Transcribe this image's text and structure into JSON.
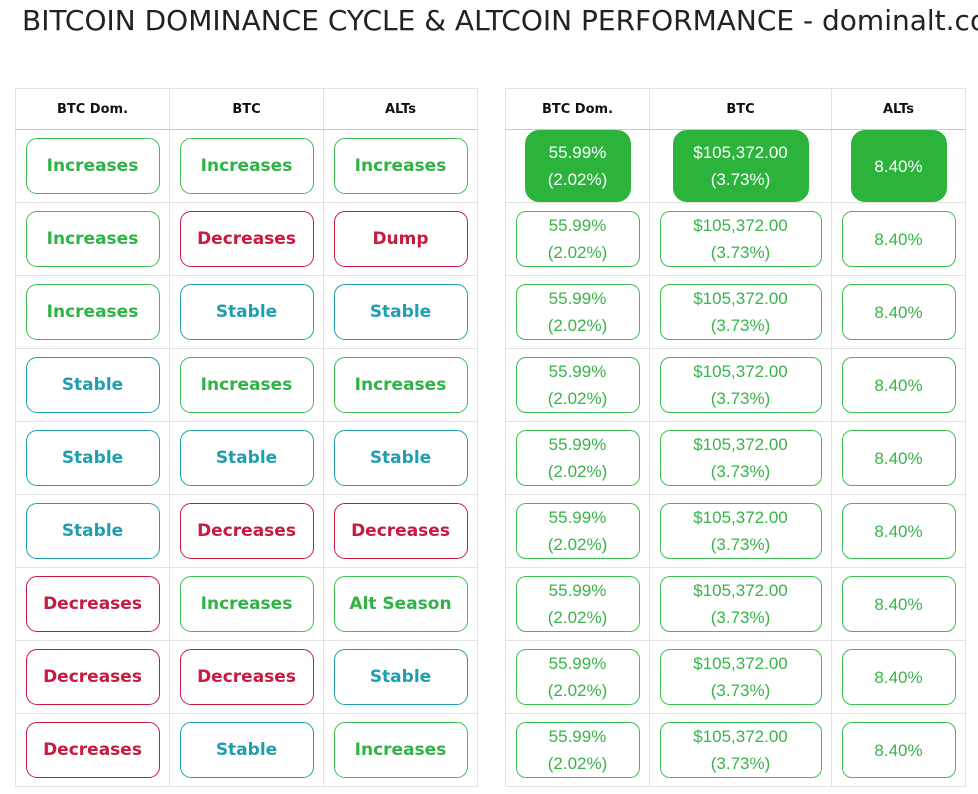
{
  "title": "BITCOIN DOMINANCE CYCLE & ALTCOIN PERFORMANCE - dominalt.com",
  "headers": [
    "BTC Dom.",
    "BTC",
    "ALTs"
  ],
  "rows": [
    {
      "btc_dom": "Increases",
      "btc": "Increases",
      "alts": "Increases"
    },
    {
      "btc_dom": "Increases",
      "btc": "Decreases",
      "alts": "Dump"
    },
    {
      "btc_dom": "Increases",
      "btc": "Stable",
      "alts": "Stable"
    },
    {
      "btc_dom": "Stable",
      "btc": "Increases",
      "alts": "Increases"
    },
    {
      "btc_dom": "Stable",
      "btc": "Stable",
      "alts": "Stable"
    },
    {
      "btc_dom": "Stable",
      "btc": "Decreases",
      "alts": "Decreases"
    },
    {
      "btc_dom": "Decreases",
      "btc": "Increases",
      "alts": "Alt Season"
    },
    {
      "btc_dom": "Decreases",
      "btc": "Decreases",
      "alts": "Stable"
    },
    {
      "btc_dom": "Decreases",
      "btc": "Stable",
      "alts": "Increases"
    }
  ],
  "current": {
    "btc_dom_value": "55.99%",
    "btc_dom_change": "(2.02%)",
    "btc_value": "$105,372.00",
    "btc_change": "(3.73%)",
    "alts_change": "8.40%"
  },
  "active_row": 0,
  "colors": {
    "Increases": "#2fb344",
    "Decreases": "#c8193f",
    "Stable": "#1e9fb0",
    "Dump": "#c8193f",
    "Alt Season": "#2fb344",
    "active_fill": "#2cb33c",
    "value_text": "#38b44a"
  }
}
